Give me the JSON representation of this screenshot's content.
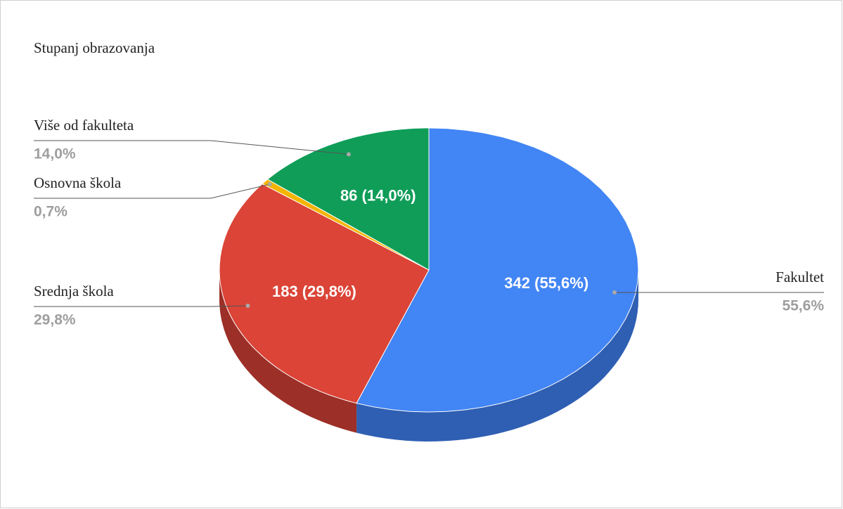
{
  "chart_data": {
    "type": "pie",
    "title": "Stupanj obrazovanja",
    "categories": [
      "Fakultet",
      "Srednja škola",
      "Osnovna škola",
      "Više od fakulteta"
    ],
    "values": [
      342,
      183,
      4,
      86
    ],
    "value_labels": [
      "342 (55,6%)",
      "183 (29,8%)",
      null,
      "86 (14,0%)"
    ],
    "percents": [
      55.6,
      29.8,
      0.7,
      14.0
    ],
    "percent_labels": [
      "55,6%",
      "29,8%",
      "0,7%",
      "14,0%"
    ],
    "colors": [
      "#4285f4",
      "#db4437",
      "#f4b400",
      "#0f9d58"
    ],
    "side_colors": [
      "#2f5fb3",
      "#9c2f27",
      "#b08100",
      "#0a7040"
    ]
  }
}
